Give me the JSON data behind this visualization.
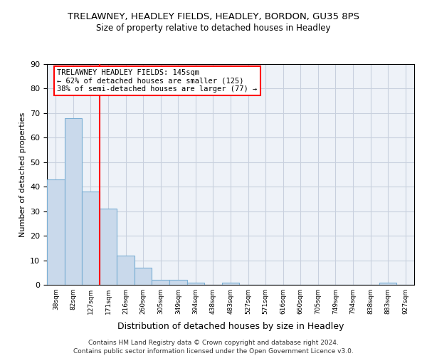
{
  "title": "TRELAWNEY, HEADLEY FIELDS, HEADLEY, BORDON, GU35 8PS",
  "subtitle": "Size of property relative to detached houses in Headley",
  "xlabel": "Distribution of detached houses by size in Headley",
  "ylabel": "Number of detached properties",
  "footer_line1": "Contains HM Land Registry data © Crown copyright and database right 2024.",
  "footer_line2": "Contains public sector information licensed under the Open Government Licence v3.0.",
  "bar_labels": [
    "38sqm",
    "82sqm",
    "127sqm",
    "171sqm",
    "216sqm",
    "260sqm",
    "305sqm",
    "349sqm",
    "394sqm",
    "438sqm",
    "483sqm",
    "527sqm",
    "571sqm",
    "616sqm",
    "660sqm",
    "705sqm",
    "749sqm",
    "794sqm",
    "838sqm",
    "883sqm",
    "927sqm"
  ],
  "bar_values": [
    43,
    68,
    38,
    31,
    12,
    7,
    2,
    2,
    1,
    0,
    1,
    0,
    0,
    0,
    0,
    0,
    0,
    0,
    0,
    1,
    0
  ],
  "bar_color": "#c9d9eb",
  "bar_edge_color": "#7bafd4",
  "ylim": [
    0,
    90
  ],
  "yticks": [
    0,
    10,
    20,
    30,
    40,
    50,
    60,
    70,
    80,
    90
  ],
  "red_line_x": 2.5,
  "annotation_line1": "TRELAWNEY HEADLEY FIELDS: 145sqm",
  "annotation_line2": "← 62% of detached houses are smaller (125)",
  "annotation_line3": "38% of semi-detached houses are larger (77) →",
  "bg_color": "#eef2f8",
  "grid_color": "#c8d0de",
  "title_fontsize": 9.5,
  "subtitle_fontsize": 8.5,
  "xlabel_fontsize": 9,
  "ylabel_fontsize": 8,
  "annotation_fontsize": 7.5,
  "footer_fontsize": 6.5
}
